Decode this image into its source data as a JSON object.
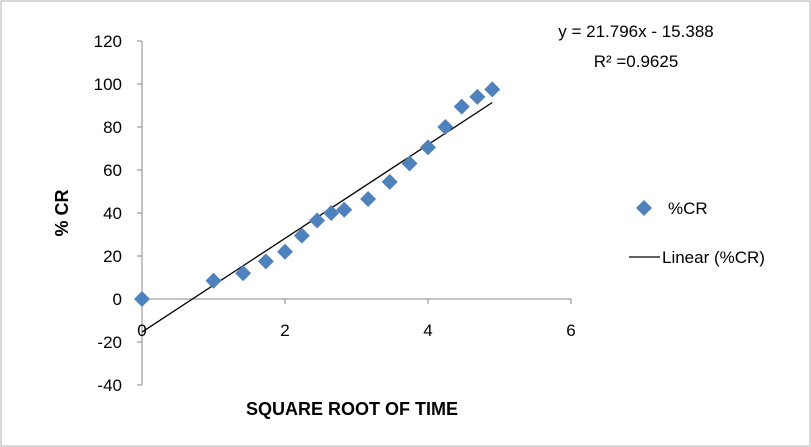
{
  "chart_data": {
    "type": "scatter",
    "title": "",
    "xlabel": "SQUARE ROOT OF TIME",
    "ylabel": "% CR",
    "xlim": [
      0,
      6
    ],
    "ylim": [
      -40,
      120
    ],
    "x_ticks": [
      "0",
      "2",
      "4",
      "6"
    ],
    "y_ticks": [
      "-40",
      "-20",
      "0",
      "20",
      "40",
      "60",
      "80",
      "100",
      "120"
    ],
    "grid": false,
    "legend_position": "right",
    "series": [
      {
        "name": "%CR",
        "marker": "diamond",
        "color": "#4f81bd",
        "x": [
          0,
          1.0,
          1.414,
          1.732,
          2.0,
          2.236,
          2.449,
          2.646,
          2.828,
          3.162,
          3.464,
          3.742,
          4.0,
          4.243,
          4.472,
          4.69,
          4.899
        ],
        "y": [
          0,
          8.5,
          12,
          17.5,
          22,
          29.5,
          36.5,
          40,
          41.5,
          46.5,
          54.5,
          63,
          70.5,
          80,
          89.5,
          94,
          97.5
        ]
      }
    ],
    "trendline": {
      "name": "Linear (%CR)",
      "slope": 21.796,
      "intercept": -15.388,
      "x_range": [
        0,
        4.899
      ],
      "color": "#000000"
    },
    "annotations": {
      "equation": "y = 21.796x - 15.388",
      "r_squared": "R² =0.9625"
    }
  }
}
